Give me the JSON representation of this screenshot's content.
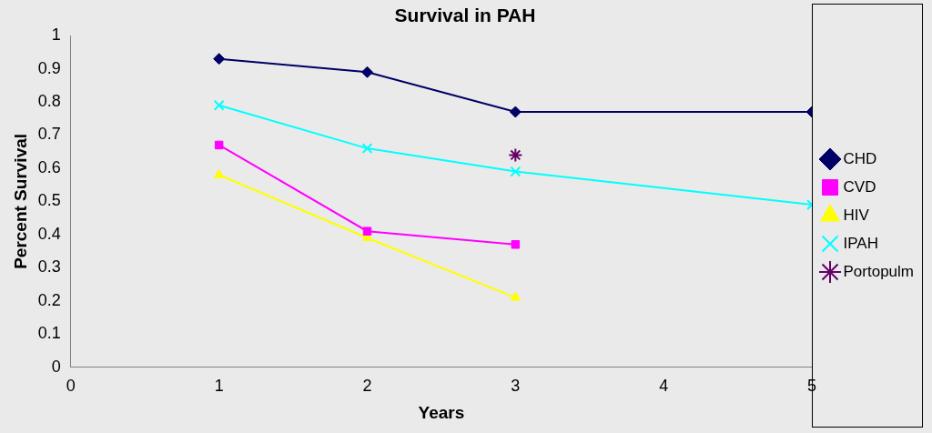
{
  "chart_data": {
    "type": "line",
    "title": "Survival in PAH",
    "x_label": "Years",
    "y_label": "Percent Survival",
    "x": [
      1,
      2,
      3,
      5
    ],
    "series": [
      {
        "name": "CHD",
        "color": "#000066",
        "marker": "diamond",
        "values": [
          0.93,
          0.89,
          0.77,
          0.77
        ]
      },
      {
        "name": "CVD",
        "color": "#ff00ff",
        "marker": "square",
        "values": [
          0.67,
          0.41,
          0.37,
          null
        ]
      },
      {
        "name": "HIV",
        "color": "#ffff00",
        "marker": "triangle",
        "values": [
          0.58,
          0.39,
          0.21,
          null
        ]
      },
      {
        "name": "IPAH",
        "color": "#00ffff",
        "marker": "x",
        "values": [
          0.79,
          0.66,
          0.59,
          0.49
        ]
      },
      {
        "name": "Portopulm",
        "color": "#660066",
        "marker": "star",
        "values": [
          null,
          null,
          0.64,
          null
        ]
      }
    ],
    "xlim": [
      0,
      5
    ],
    "xticks": [
      0,
      1,
      2,
      3,
      4,
      5
    ],
    "ylim": [
      0,
      1
    ],
    "yticks": [
      0,
      0.1,
      0.2,
      0.3,
      0.4,
      0.5,
      0.6,
      0.7,
      0.8,
      0.9,
      1
    ],
    "grid": false,
    "legend": "right"
  }
}
